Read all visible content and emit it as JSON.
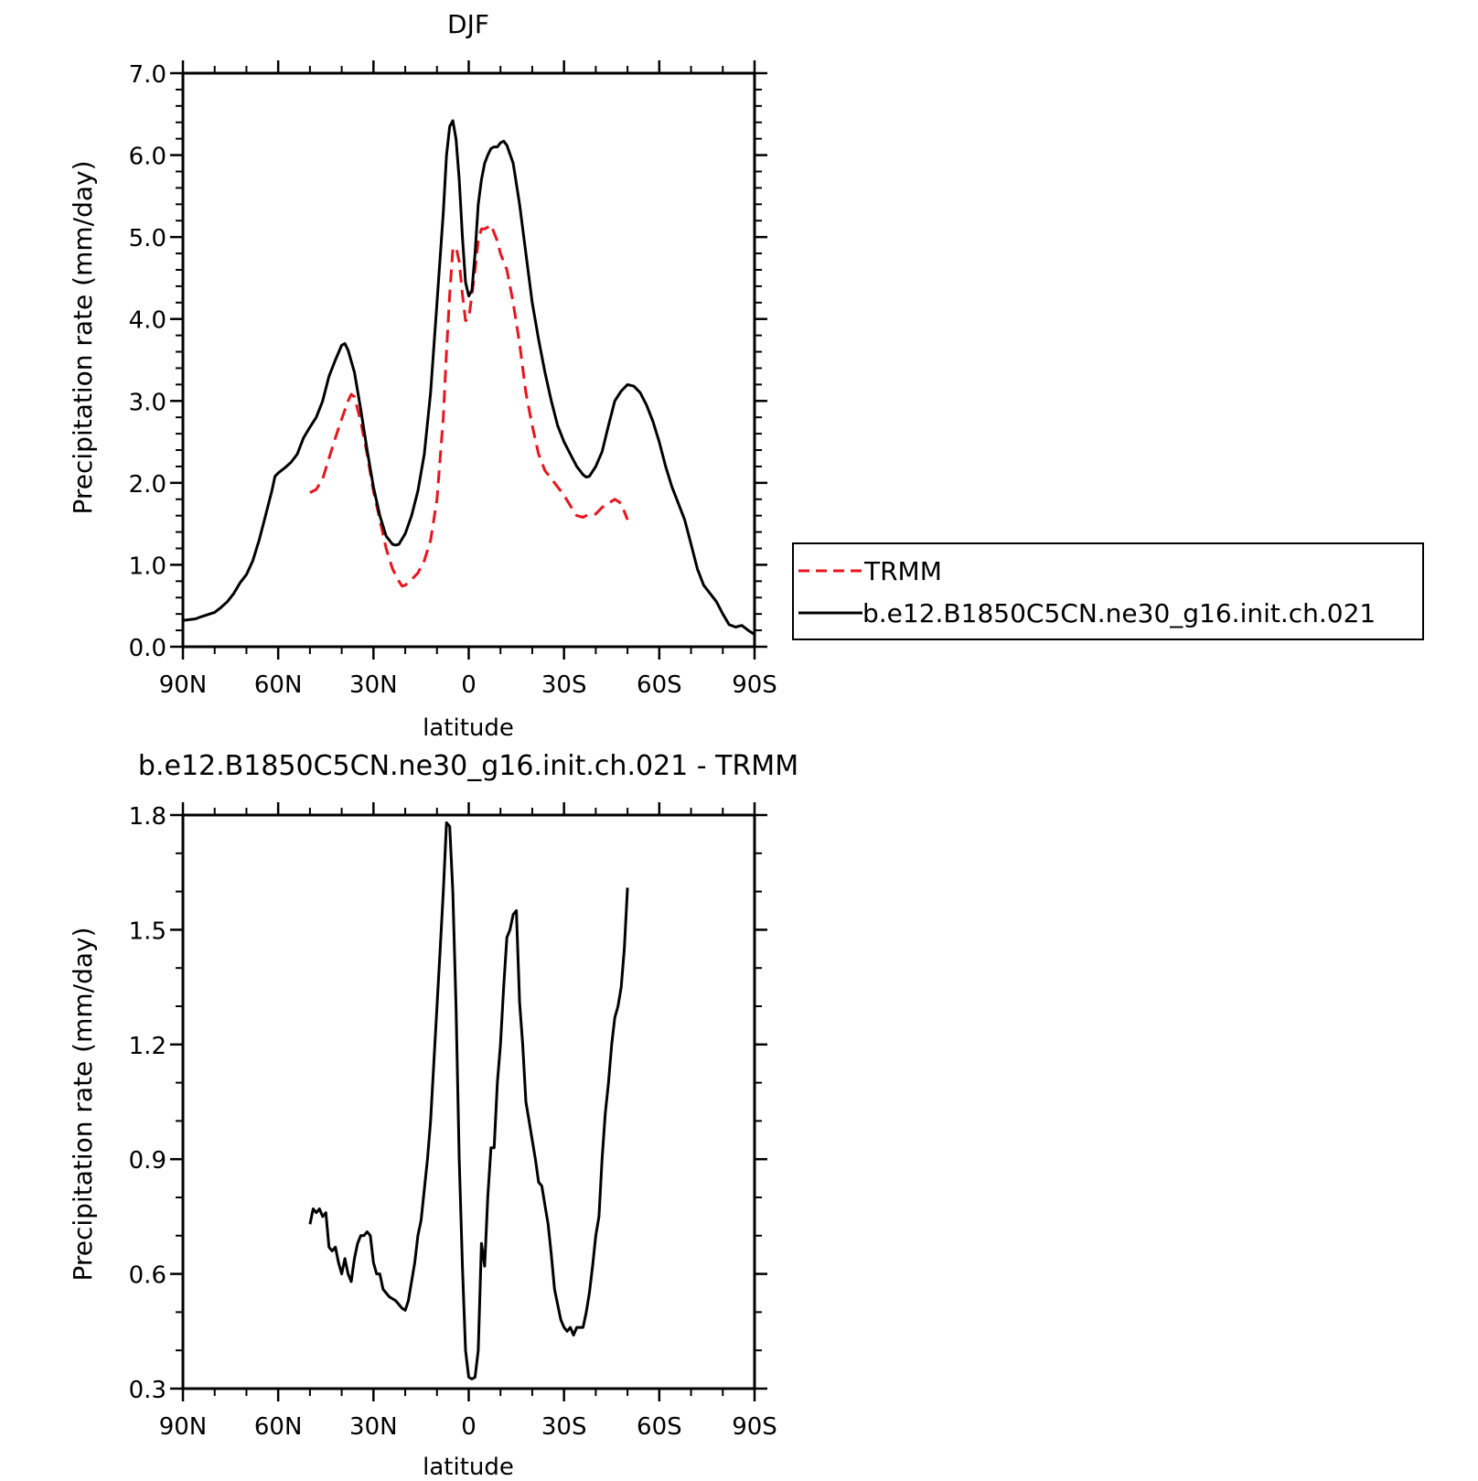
{
  "chart_data": [
    {
      "type": "line",
      "title": "DJF",
      "xlabel": "latitude",
      "ylabel": "Precipitation rate (mm/day)",
      "xlim": [
        90,
        -90
      ],
      "ylim": [
        0,
        7
      ],
      "x_tick_labels": [
        "90N",
        "60N",
        "30N",
        "0",
        "30S",
        "60S",
        "90S"
      ],
      "y_tick_labels": [
        "0.0",
        "1.0",
        "2.0",
        "3.0",
        "4.0",
        "5.0",
        "6.0",
        "7.0"
      ],
      "legend": {
        "position": "right",
        "entries": [
          "TRMM",
          "b.e12.B1850C5CN.ne30_g16.init.ch.021"
        ]
      },
      "series": [
        {
          "name": "TRMM",
          "color": "#e8141e",
          "style": "dashed",
          "points": [
            [
              50,
              1.88
            ],
            [
              48,
              1.92
            ],
            [
              46,
              2.05
            ],
            [
              44,
              2.3
            ],
            [
              42,
              2.55
            ],
            [
              40,
              2.78
            ],
            [
              38,
              3.0
            ],
            [
              37,
              3.08
            ],
            [
              36,
              3.05
            ],
            [
              34,
              2.75
            ],
            [
              32,
              2.35
            ],
            [
              30,
              1.9
            ],
            [
              28,
              1.55
            ],
            [
              26,
              1.2
            ],
            [
              24,
              0.95
            ],
            [
              22,
              0.8
            ],
            [
              21,
              0.74
            ],
            [
              20,
              0.75
            ],
            [
              18,
              0.82
            ],
            [
              16,
              0.9
            ],
            [
              14,
              1.05
            ],
            [
              12,
              1.3
            ],
            [
              10,
              1.8
            ],
            [
              8,
              2.8
            ],
            [
              7,
              3.6
            ],
            [
              6,
              4.3
            ],
            [
              5,
              4.85
            ],
            [
              4,
              4.88
            ],
            [
              3,
              4.7
            ],
            [
              2,
              4.3
            ],
            [
              1,
              3.98
            ],
            [
              0,
              4.0
            ],
            [
              -1,
              4.3
            ],
            [
              -2,
              4.6
            ],
            [
              -3,
              4.95
            ],
            [
              -4,
              5.1
            ],
            [
              -5,
              5.1
            ],
            [
              -6,
              5.12
            ],
            [
              -7,
              5.15
            ],
            [
              -8,
              5.05
            ],
            [
              -9,
              4.95
            ],
            [
              -10,
              4.8
            ],
            [
              -12,
              4.6
            ],
            [
              -14,
              4.2
            ],
            [
              -16,
              3.7
            ],
            [
              -18,
              3.1
            ],
            [
              -20,
              2.7
            ],
            [
              -22,
              2.35
            ],
            [
              -24,
              2.15
            ],
            [
              -26,
              2.05
            ],
            [
              -28,
              1.95
            ],
            [
              -30,
              1.85
            ],
            [
              -32,
              1.72
            ],
            [
              -34,
              1.6
            ],
            [
              -36,
              1.58
            ],
            [
              -38,
              1.62
            ],
            [
              -40,
              1.62
            ],
            [
              -42,
              1.7
            ],
            [
              -44,
              1.75
            ],
            [
              -46,
              1.8
            ],
            [
              -48,
              1.75
            ],
            [
              -49,
              1.65
            ],
            [
              -50,
              1.55
            ]
          ]
        },
        {
          "name": "b.e12.B1850C5CN.ne30_g16.init.ch.021",
          "color": "#000000",
          "style": "solid",
          "points": [
            [
              90,
              0.32
            ],
            [
              86,
              0.34
            ],
            [
              84,
              0.37
            ],
            [
              80,
              0.42
            ],
            [
              78,
              0.48
            ],
            [
              76,
              0.55
            ],
            [
              74,
              0.65
            ],
            [
              72,
              0.78
            ],
            [
              70,
              0.88
            ],
            [
              68,
              1.05
            ],
            [
              66,
              1.3
            ],
            [
              64,
              1.6
            ],
            [
              62,
              1.9
            ],
            [
              61,
              2.08
            ],
            [
              60,
              2.12
            ],
            [
              58,
              2.18
            ],
            [
              56,
              2.25
            ],
            [
              54,
              2.35
            ],
            [
              52,
              2.55
            ],
            [
              50,
              2.68
            ],
            [
              48,
              2.8
            ],
            [
              46,
              3.0
            ],
            [
              44,
              3.3
            ],
            [
              42,
              3.5
            ],
            [
              40,
              3.68
            ],
            [
              39,
              3.7
            ],
            [
              38,
              3.62
            ],
            [
              36,
              3.35
            ],
            [
              34,
              2.9
            ],
            [
              32,
              2.4
            ],
            [
              30,
              1.95
            ],
            [
              28,
              1.6
            ],
            [
              26,
              1.35
            ],
            [
              24,
              1.25
            ],
            [
              23,
              1.24
            ],
            [
              22,
              1.25
            ],
            [
              20,
              1.38
            ],
            [
              18,
              1.6
            ],
            [
              16,
              1.9
            ],
            [
              14,
              2.35
            ],
            [
              12,
              3.1
            ],
            [
              10,
              4.2
            ],
            [
              8,
              5.3
            ],
            [
              7,
              6.0
            ],
            [
              6,
              6.35
            ],
            [
              5,
              6.42
            ],
            [
              4,
              6.2
            ],
            [
              3,
              5.7
            ],
            [
              2,
              5.0
            ],
            [
              1,
              4.45
            ],
            [
              0,
              4.28
            ],
            [
              -1,
              4.35
            ],
            [
              -2,
              4.8
            ],
            [
              -3,
              5.4
            ],
            [
              -4,
              5.7
            ],
            [
              -5,
              5.9
            ],
            [
              -6,
              6.0
            ],
            [
              -7,
              6.08
            ],
            [
              -8,
              6.1
            ],
            [
              -9,
              6.1
            ],
            [
              -10,
              6.15
            ],
            [
              -11,
              6.17
            ],
            [
              -12,
              6.12
            ],
            [
              -14,
              5.9
            ],
            [
              -16,
              5.4
            ],
            [
              -18,
              4.8
            ],
            [
              -20,
              4.2
            ],
            [
              -22,
              3.75
            ],
            [
              -24,
              3.35
            ],
            [
              -26,
              3.0
            ],
            [
              -28,
              2.7
            ],
            [
              -30,
              2.5
            ],
            [
              -32,
              2.35
            ],
            [
              -34,
              2.2
            ],
            [
              -36,
              2.1
            ],
            [
              -37,
              2.07
            ],
            [
              -38,
              2.08
            ],
            [
              -40,
              2.2
            ],
            [
              -42,
              2.38
            ],
            [
              -44,
              2.7
            ],
            [
              -46,
              3.0
            ],
            [
              -48,
              3.12
            ],
            [
              -50,
              3.2
            ],
            [
              -52,
              3.18
            ],
            [
              -54,
              3.1
            ],
            [
              -56,
              2.95
            ],
            [
              -58,
              2.75
            ],
            [
              -60,
              2.5
            ],
            [
              -62,
              2.2
            ],
            [
              -64,
              1.95
            ],
            [
              -66,
              1.75
            ],
            [
              -68,
              1.55
            ],
            [
              -70,
              1.25
            ],
            [
              -72,
              0.95
            ],
            [
              -74,
              0.75
            ],
            [
              -76,
              0.65
            ],
            [
              -78,
              0.55
            ],
            [
              -80,
              0.4
            ],
            [
              -82,
              0.27
            ],
            [
              -84,
              0.24
            ],
            [
              -86,
              0.26
            ],
            [
              -88,
              0.2
            ],
            [
              -90,
              0.15
            ]
          ]
        }
      ]
    },
    {
      "type": "line",
      "title": "b.e12.B1850C5CN.ne30_g16.init.ch.021 - TRMM",
      "xlabel": "latitude",
      "ylabel": "Precipitation rate (mm/day)",
      "xlim": [
        90,
        -90
      ],
      "ylim": [
        0.3,
        1.8
      ],
      "x_tick_labels": [
        "90N",
        "60N",
        "30N",
        "0",
        "30S",
        "60S",
        "90S"
      ],
      "y_tick_labels": [
        "0.3",
        "0.6",
        "0.9",
        "1.2",
        "1.5",
        "1.8"
      ],
      "series": [
        {
          "color": "#000000",
          "style": "solid",
          "points": [
            [
              50,
              0.73
            ],
            [
              49,
              0.77
            ],
            [
              48,
              0.76
            ],
            [
              47,
              0.77
            ],
            [
              46,
              0.75
            ],
            [
              45,
              0.76
            ],
            [
              44,
              0.67
            ],
            [
              43,
              0.66
            ],
            [
              42,
              0.67
            ],
            [
              41,
              0.63
            ],
            [
              40,
              0.6
            ],
            [
              39,
              0.64
            ],
            [
              38,
              0.6
            ],
            [
              37,
              0.58
            ],
            [
              36,
              0.64
            ],
            [
              35,
              0.68
            ],
            [
              34,
              0.7
            ],
            [
              33,
              0.7
            ],
            [
              32,
              0.71
            ],
            [
              31,
              0.7
            ],
            [
              30,
              0.63
            ],
            [
              29,
              0.6
            ],
            [
              28,
              0.6
            ],
            [
              27,
              0.56
            ],
            [
              26,
              0.55
            ],
            [
              25,
              0.54
            ],
            [
              24,
              0.535
            ],
            [
              23,
              0.53
            ],
            [
              22,
              0.52
            ],
            [
              21,
              0.51
            ],
            [
              20,
              0.505
            ],
            [
              19,
              0.53
            ],
            [
              18,
              0.58
            ],
            [
              17,
              0.63
            ],
            [
              16,
              0.7
            ],
            [
              15,
              0.74
            ],
            [
              14,
              0.82
            ],
            [
              13,
              0.9
            ],
            [
              12,
              1.0
            ],
            [
              11,
              1.15
            ],
            [
              10,
              1.3
            ],
            [
              9,
              1.45
            ],
            [
              8,
              1.6
            ],
            [
              7,
              1.78
            ],
            [
              6,
              1.77
            ],
            [
              5,
              1.6
            ],
            [
              4,
              1.3
            ],
            [
              3,
              0.9
            ],
            [
              2,
              0.62
            ],
            [
              1,
              0.4
            ],
            [
              0,
              0.33
            ],
            [
              -1,
              0.325
            ],
            [
              -2,
              0.33
            ],
            [
              -3,
              0.4
            ],
            [
              -4,
              0.68
            ],
            [
              -5,
              0.62
            ],
            [
              -6,
              0.8
            ],
            [
              -7,
              0.93
            ],
            [
              -8,
              0.93
            ],
            [
              -9,
              1.1
            ],
            [
              -10,
              1.2
            ],
            [
              -11,
              1.35
            ],
            [
              -12,
              1.48
            ],
            [
              -13,
              1.5
            ],
            [
              -14,
              1.54
            ],
            [
              -15,
              1.55
            ],
            [
              -16,
              1.31
            ],
            [
              -17,
              1.2
            ],
            [
              -18,
              1.05
            ],
            [
              -19,
              1.0
            ],
            [
              -20,
              0.95
            ],
            [
              -21,
              0.9
            ],
            [
              -22,
              0.84
            ],
            [
              -23,
              0.83
            ],
            [
              -24,
              0.78
            ],
            [
              -25,
              0.73
            ],
            [
              -26,
              0.65
            ],
            [
              -27,
              0.56
            ],
            [
              -28,
              0.52
            ],
            [
              -29,
              0.48
            ],
            [
              -30,
              0.46
            ],
            [
              -31,
              0.45
            ],
            [
              -32,
              0.46
            ],
            [
              -33,
              0.44
            ],
            [
              -34,
              0.46
            ],
            [
              -35,
              0.46
            ],
            [
              -36,
              0.46
            ],
            [
              -37,
              0.5
            ],
            [
              -38,
              0.55
            ],
            [
              -39,
              0.62
            ],
            [
              -40,
              0.7
            ],
            [
              -41,
              0.75
            ],
            [
              -42,
              0.9
            ],
            [
              -43,
              1.02
            ],
            [
              -44,
              1.1
            ],
            [
              -45,
              1.2
            ],
            [
              -46,
              1.27
            ],
            [
              -47,
              1.3
            ],
            [
              -48,
              1.35
            ],
            [
              -49,
              1.45
            ],
            [
              -50,
              1.61
            ]
          ]
        }
      ]
    }
  ]
}
